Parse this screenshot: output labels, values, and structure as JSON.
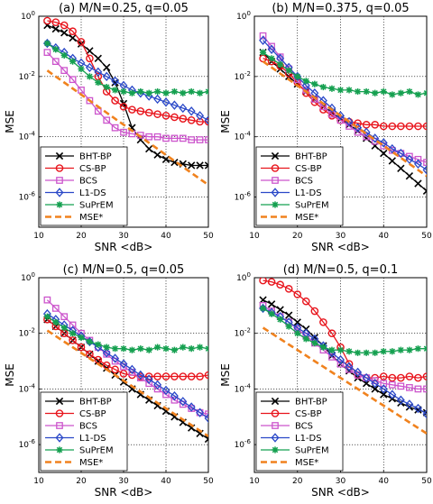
{
  "chart_data": [
    {
      "type": "line",
      "title": "(a) M/N=0.25, q=0.05",
      "xlabel": "SNR <dB>",
      "ylabel": "MSE",
      "y_scale": "log",
      "xlim": [
        10,
        50
      ],
      "ylim_exponent": [
        -7,
        0
      ],
      "x_ticks": [
        "10",
        "20",
        "30",
        "40",
        "50"
      ],
      "y_tick_base": "10",
      "y_tick_exponents": [
        "0",
        "-2",
        "-4",
        "-6"
      ],
      "grid": true,
      "legend_position": "bottom-left",
      "x": [
        12,
        14,
        16,
        18,
        20,
        22,
        24,
        26,
        28,
        30,
        32,
        34,
        36,
        38,
        40,
        42,
        44,
        46,
        48,
        50
      ],
      "series": [
        {
          "name": "BHT-BP",
          "color": "#000000",
          "marker": "x",
          "log10_values": [
            -0.3,
            -0.42,
            -0.55,
            -0.72,
            -0.92,
            -1.15,
            -1.4,
            -1.7,
            -2.2,
            -2.9,
            -3.7,
            -4.1,
            -4.4,
            -4.6,
            -4.75,
            -4.85,
            -4.9,
            -4.95,
            -4.95,
            -4.95
          ]
        },
        {
          "name": "CS-BP",
          "color": "#e8141c",
          "marker": "circle",
          "log10_values": [
            -0.15,
            -0.2,
            -0.3,
            -0.5,
            -0.85,
            -1.4,
            -2.0,
            -2.5,
            -2.8,
            -3.0,
            -3.1,
            -3.15,
            -3.2,
            -3.25,
            -3.3,
            -3.35,
            -3.4,
            -3.45,
            -3.5,
            -3.5
          ]
        },
        {
          "name": "BCS",
          "color": "#cc55cc",
          "marker": "square",
          "log10_values": [
            -1.2,
            -1.5,
            -1.8,
            -2.1,
            -2.45,
            -2.8,
            -3.15,
            -3.45,
            -3.7,
            -3.85,
            -3.9,
            -3.95,
            -4.0,
            -4.0,
            -4.05,
            -4.05,
            -4.05,
            -4.1,
            -4.1,
            -4.1
          ]
        },
        {
          "name": "L1-DS",
          "color": "#2a48c8",
          "marker": "diamond",
          "log10_values": [
            -0.9,
            -1.05,
            -1.2,
            -1.4,
            -1.55,
            -1.7,
            -1.85,
            -2.0,
            -2.15,
            -2.3,
            -2.45,
            -2.55,
            -2.65,
            -2.75,
            -2.85,
            -2.95,
            -3.05,
            -3.15,
            -3.3,
            -3.45
          ]
        },
        {
          "name": "SuPrEM",
          "color": "#15a050",
          "marker": "star",
          "log10_values": [
            -0.9,
            -1.1,
            -1.3,
            -1.5,
            -1.75,
            -2.0,
            -2.2,
            -2.35,
            -2.45,
            -2.5,
            -2.55,
            -2.5,
            -2.55,
            -2.5,
            -2.55,
            -2.5,
            -2.55,
            -2.5,
            -2.55,
            -2.5
          ]
        },
        {
          "name": "MSE*",
          "color": "#f0821e",
          "marker": "dash",
          "log10_values": [
            -1.8,
            -2.0,
            -2.2,
            -2.4,
            -2.6,
            -2.8,
            -3.0,
            -3.2,
            -3.4,
            -3.6,
            -3.8,
            -4.0,
            -4.2,
            -4.4,
            -4.6,
            -4.8,
            -5.0,
            -5.2,
            -5.4,
            -5.6
          ]
        }
      ]
    },
    {
      "type": "line",
      "title": "(b) M/N=0.375, q=0.05",
      "xlabel": "SNR <dB>",
      "ylabel": "MSE",
      "y_scale": "log",
      "xlim": [
        10,
        50
      ],
      "ylim_exponent": [
        -7,
        0
      ],
      "x_ticks": [
        "10",
        "20",
        "30",
        "40",
        "50"
      ],
      "y_tick_base": "10",
      "y_tick_exponents": [
        "0",
        "-2",
        "-4",
        "-6"
      ],
      "grid": true,
      "legend_position": "bottom-left",
      "x": [
        12,
        14,
        16,
        18,
        20,
        22,
        24,
        26,
        28,
        30,
        32,
        34,
        36,
        38,
        40,
        42,
        44,
        46,
        48,
        50
      ],
      "series": [
        {
          "name": "BHT-BP",
          "color": "#000000",
          "marker": "x",
          "log10_values": [
            -1.2,
            -1.5,
            -1.75,
            -2.0,
            -2.25,
            -2.5,
            -2.75,
            -3.0,
            -3.2,
            -3.4,
            -3.6,
            -3.8,
            -4.05,
            -4.3,
            -4.55,
            -4.8,
            -5.05,
            -5.3,
            -5.55,
            -5.8
          ]
        },
        {
          "name": "CS-BP",
          "color": "#e8141c",
          "marker": "circle",
          "log10_values": [
            -1.4,
            -1.5,
            -1.65,
            -1.9,
            -2.2,
            -2.55,
            -2.85,
            -3.1,
            -3.3,
            -3.45,
            -3.5,
            -3.55,
            -3.6,
            -3.6,
            -3.65,
            -3.65,
            -3.65,
            -3.65,
            -3.65,
            -3.65
          ]
        },
        {
          "name": "BCS",
          "color": "#cc55cc",
          "marker": "square",
          "log10_values": [
            -0.65,
            -1.0,
            -1.35,
            -1.75,
            -2.1,
            -2.45,
            -2.75,
            -3.0,
            -3.25,
            -3.45,
            -3.65,
            -3.85,
            -4.0,
            -4.15,
            -4.3,
            -4.45,
            -4.55,
            -4.65,
            -4.75,
            -4.85
          ]
        },
        {
          "name": "L1-DS",
          "color": "#2a48c8",
          "marker": "diamond",
          "log10_values": [
            -0.8,
            -1.1,
            -1.4,
            -1.7,
            -2.0,
            -2.3,
            -2.55,
            -2.8,
            -3.05,
            -3.3,
            -3.5,
            -3.7,
            -3.85,
            -4.05,
            -4.2,
            -4.4,
            -4.55,
            -4.75,
            -4.9,
            -5.1
          ]
        },
        {
          "name": "SuPrEM",
          "color": "#15a050",
          "marker": "star",
          "log10_values": [
            -1.2,
            -1.4,
            -1.6,
            -1.8,
            -2.0,
            -2.15,
            -2.25,
            -2.35,
            -2.4,
            -2.45,
            -2.45,
            -2.5,
            -2.5,
            -2.55,
            -2.5,
            -2.6,
            -2.55,
            -2.5,
            -2.6,
            -2.55
          ]
        },
        {
          "name": "MSE*",
          "color": "#f0821e",
          "marker": "dash",
          "log10_values": [
            -1.5,
            -1.7,
            -1.9,
            -2.1,
            -2.3,
            -2.5,
            -2.7,
            -2.9,
            -3.1,
            -3.3,
            -3.5,
            -3.7,
            -3.9,
            -4.1,
            -4.3,
            -4.5,
            -4.7,
            -4.9,
            -5.1,
            -5.3
          ]
        }
      ]
    },
    {
      "type": "line",
      "title": "(c) M/N=0.5, q=0.05",
      "xlabel": "SNR <dB>",
      "ylabel": "MSE",
      "y_scale": "log",
      "xlim": [
        10,
        50
      ],
      "ylim_exponent": [
        -7,
        0
      ],
      "x_ticks": [
        "10",
        "20",
        "30",
        "40",
        "50"
      ],
      "y_tick_base": "10",
      "y_tick_exponents": [
        "0",
        "-2",
        "-4",
        "-6"
      ],
      "grid": true,
      "legend_position": "bottom-left",
      "x": [
        12,
        14,
        16,
        18,
        20,
        22,
        24,
        26,
        28,
        30,
        32,
        34,
        36,
        38,
        40,
        42,
        44,
        46,
        48,
        50
      ],
      "series": [
        {
          "name": "BHT-BP",
          "color": "#000000",
          "marker": "x",
          "log10_values": [
            -1.5,
            -1.75,
            -2.0,
            -2.25,
            -2.5,
            -2.75,
            -3.0,
            -3.25,
            -3.5,
            -3.75,
            -4.0,
            -4.2,
            -4.4,
            -4.6,
            -4.8,
            -5.0,
            -5.2,
            -5.4,
            -5.6,
            -5.8
          ]
        },
        {
          "name": "CS-BP",
          "color": "#e8141c",
          "marker": "circle",
          "log10_values": [
            -1.5,
            -1.75,
            -2.0,
            -2.25,
            -2.5,
            -2.75,
            -2.95,
            -3.15,
            -3.3,
            -3.45,
            -3.5,
            -3.55,
            -3.55,
            -3.55,
            -3.55,
            -3.55,
            -3.55,
            -3.55,
            -3.55,
            -3.5
          ]
        },
        {
          "name": "BCS",
          "color": "#cc55cc",
          "marker": "square",
          "log10_values": [
            -0.8,
            -1.1,
            -1.4,
            -1.7,
            -2.0,
            -2.25,
            -2.5,
            -2.75,
            -3.0,
            -3.2,
            -3.4,
            -3.6,
            -3.8,
            -4.0,
            -4.2,
            -4.4,
            -4.55,
            -4.7,
            -4.85,
            -4.9
          ]
        },
        {
          "name": "L1-DS",
          "color": "#2a48c8",
          "marker": "diamond",
          "log10_values": [
            -1.3,
            -1.5,
            -1.7,
            -1.9,
            -2.1,
            -2.3,
            -2.5,
            -2.7,
            -2.9,
            -3.1,
            -3.3,
            -3.5,
            -3.65,
            -3.85,
            -4.05,
            -4.25,
            -4.45,
            -4.65,
            -4.85,
            -5.05
          ]
        },
        {
          "name": "SuPrEM",
          "color": "#15a050",
          "marker": "star",
          "log10_values": [
            -1.4,
            -1.6,
            -1.8,
            -2.0,
            -2.15,
            -2.3,
            -2.4,
            -2.5,
            -2.55,
            -2.55,
            -2.6,
            -2.55,
            -2.6,
            -2.5,
            -2.55,
            -2.6,
            -2.5,
            -2.55,
            -2.5,
            -2.55
          ]
        },
        {
          "name": "MSE*",
          "color": "#f0821e",
          "marker": "dash",
          "log10_values": [
            -1.9,
            -2.1,
            -2.3,
            -2.5,
            -2.7,
            -2.9,
            -3.1,
            -3.3,
            -3.5,
            -3.7,
            -3.9,
            -4.1,
            -4.3,
            -4.5,
            -4.7,
            -4.9,
            -5.1,
            -5.3,
            -5.5,
            -5.7
          ]
        }
      ]
    },
    {
      "type": "line",
      "title": "(d) M/N=0.5, q=0.1",
      "xlabel": "SNR <dB>",
      "ylabel": "MSE",
      "y_scale": "log",
      "xlim": [
        10,
        50
      ],
      "ylim_exponent": [
        -7,
        0
      ],
      "x_ticks": [
        "10",
        "20",
        "30",
        "40",
        "50"
      ],
      "y_tick_base": "10",
      "y_tick_exponents": [
        "0",
        "-2",
        "-4",
        "-6"
      ],
      "grid": true,
      "legend_position": "bottom-left",
      "x": [
        12,
        14,
        16,
        18,
        20,
        22,
        24,
        26,
        28,
        30,
        32,
        34,
        36,
        38,
        40,
        42,
        44,
        46,
        48,
        50
      ],
      "series": [
        {
          "name": "BHT-BP",
          "color": "#000000",
          "marker": "x",
          "log10_values": [
            -0.8,
            -0.95,
            -1.15,
            -1.35,
            -1.6,
            -1.85,
            -2.15,
            -2.45,
            -2.8,
            -3.1,
            -3.35,
            -3.6,
            -3.8,
            -4.0,
            -4.2,
            -4.35,
            -4.5,
            -4.65,
            -4.75,
            -4.85
          ]
        },
        {
          "name": "CS-BP",
          "color": "#e8141c",
          "marker": "circle",
          "log10_values": [
            -0.1,
            -0.15,
            -0.25,
            -0.4,
            -0.6,
            -0.85,
            -1.2,
            -1.6,
            -2.0,
            -2.5,
            -3.1,
            -3.5,
            -3.6,
            -3.6,
            -3.55,
            -3.6,
            -3.6,
            -3.55,
            -3.6,
            -3.55
          ]
        },
        {
          "name": "BCS",
          "color": "#cc55cc",
          "marker": "square",
          "log10_values": [
            -1.0,
            -1.2,
            -1.4,
            -1.6,
            -1.85,
            -2.1,
            -2.35,
            -2.6,
            -2.85,
            -3.1,
            -3.3,
            -3.5,
            -3.6,
            -3.7,
            -3.8,
            -3.85,
            -3.9,
            -3.95,
            -4.0,
            -4.0
          ]
        },
        {
          "name": "L1-DS",
          "color": "#2a48c8",
          "marker": "diamond",
          "log10_values": [
            -1.1,
            -1.25,
            -1.4,
            -1.6,
            -1.8,
            -2.0,
            -2.2,
            -2.45,
            -2.7,
            -2.95,
            -3.2,
            -3.4,
            -3.6,
            -3.8,
            -4.0,
            -4.2,
            -4.4,
            -4.55,
            -4.7,
            -4.9
          ]
        },
        {
          "name": "SuPrEM",
          "color": "#15a050",
          "marker": "star",
          "log10_values": [
            -1.1,
            -1.3,
            -1.5,
            -1.75,
            -2.0,
            -2.2,
            -2.35,
            -2.5,
            -2.6,
            -2.6,
            -2.65,
            -2.7,
            -2.7,
            -2.7,
            -2.65,
            -2.65,
            -2.6,
            -2.6,
            -2.55,
            -2.55
          ]
        },
        {
          "name": "MSE*",
          "color": "#f0821e",
          "marker": "dash",
          "log10_values": [
            -1.8,
            -2.0,
            -2.2,
            -2.4,
            -2.6,
            -2.8,
            -3.0,
            -3.2,
            -3.4,
            -3.6,
            -3.8,
            -4.0,
            -4.2,
            -4.4,
            -4.6,
            -4.8,
            -5.0,
            -5.2,
            -5.4,
            -5.6
          ]
        }
      ]
    }
  ]
}
